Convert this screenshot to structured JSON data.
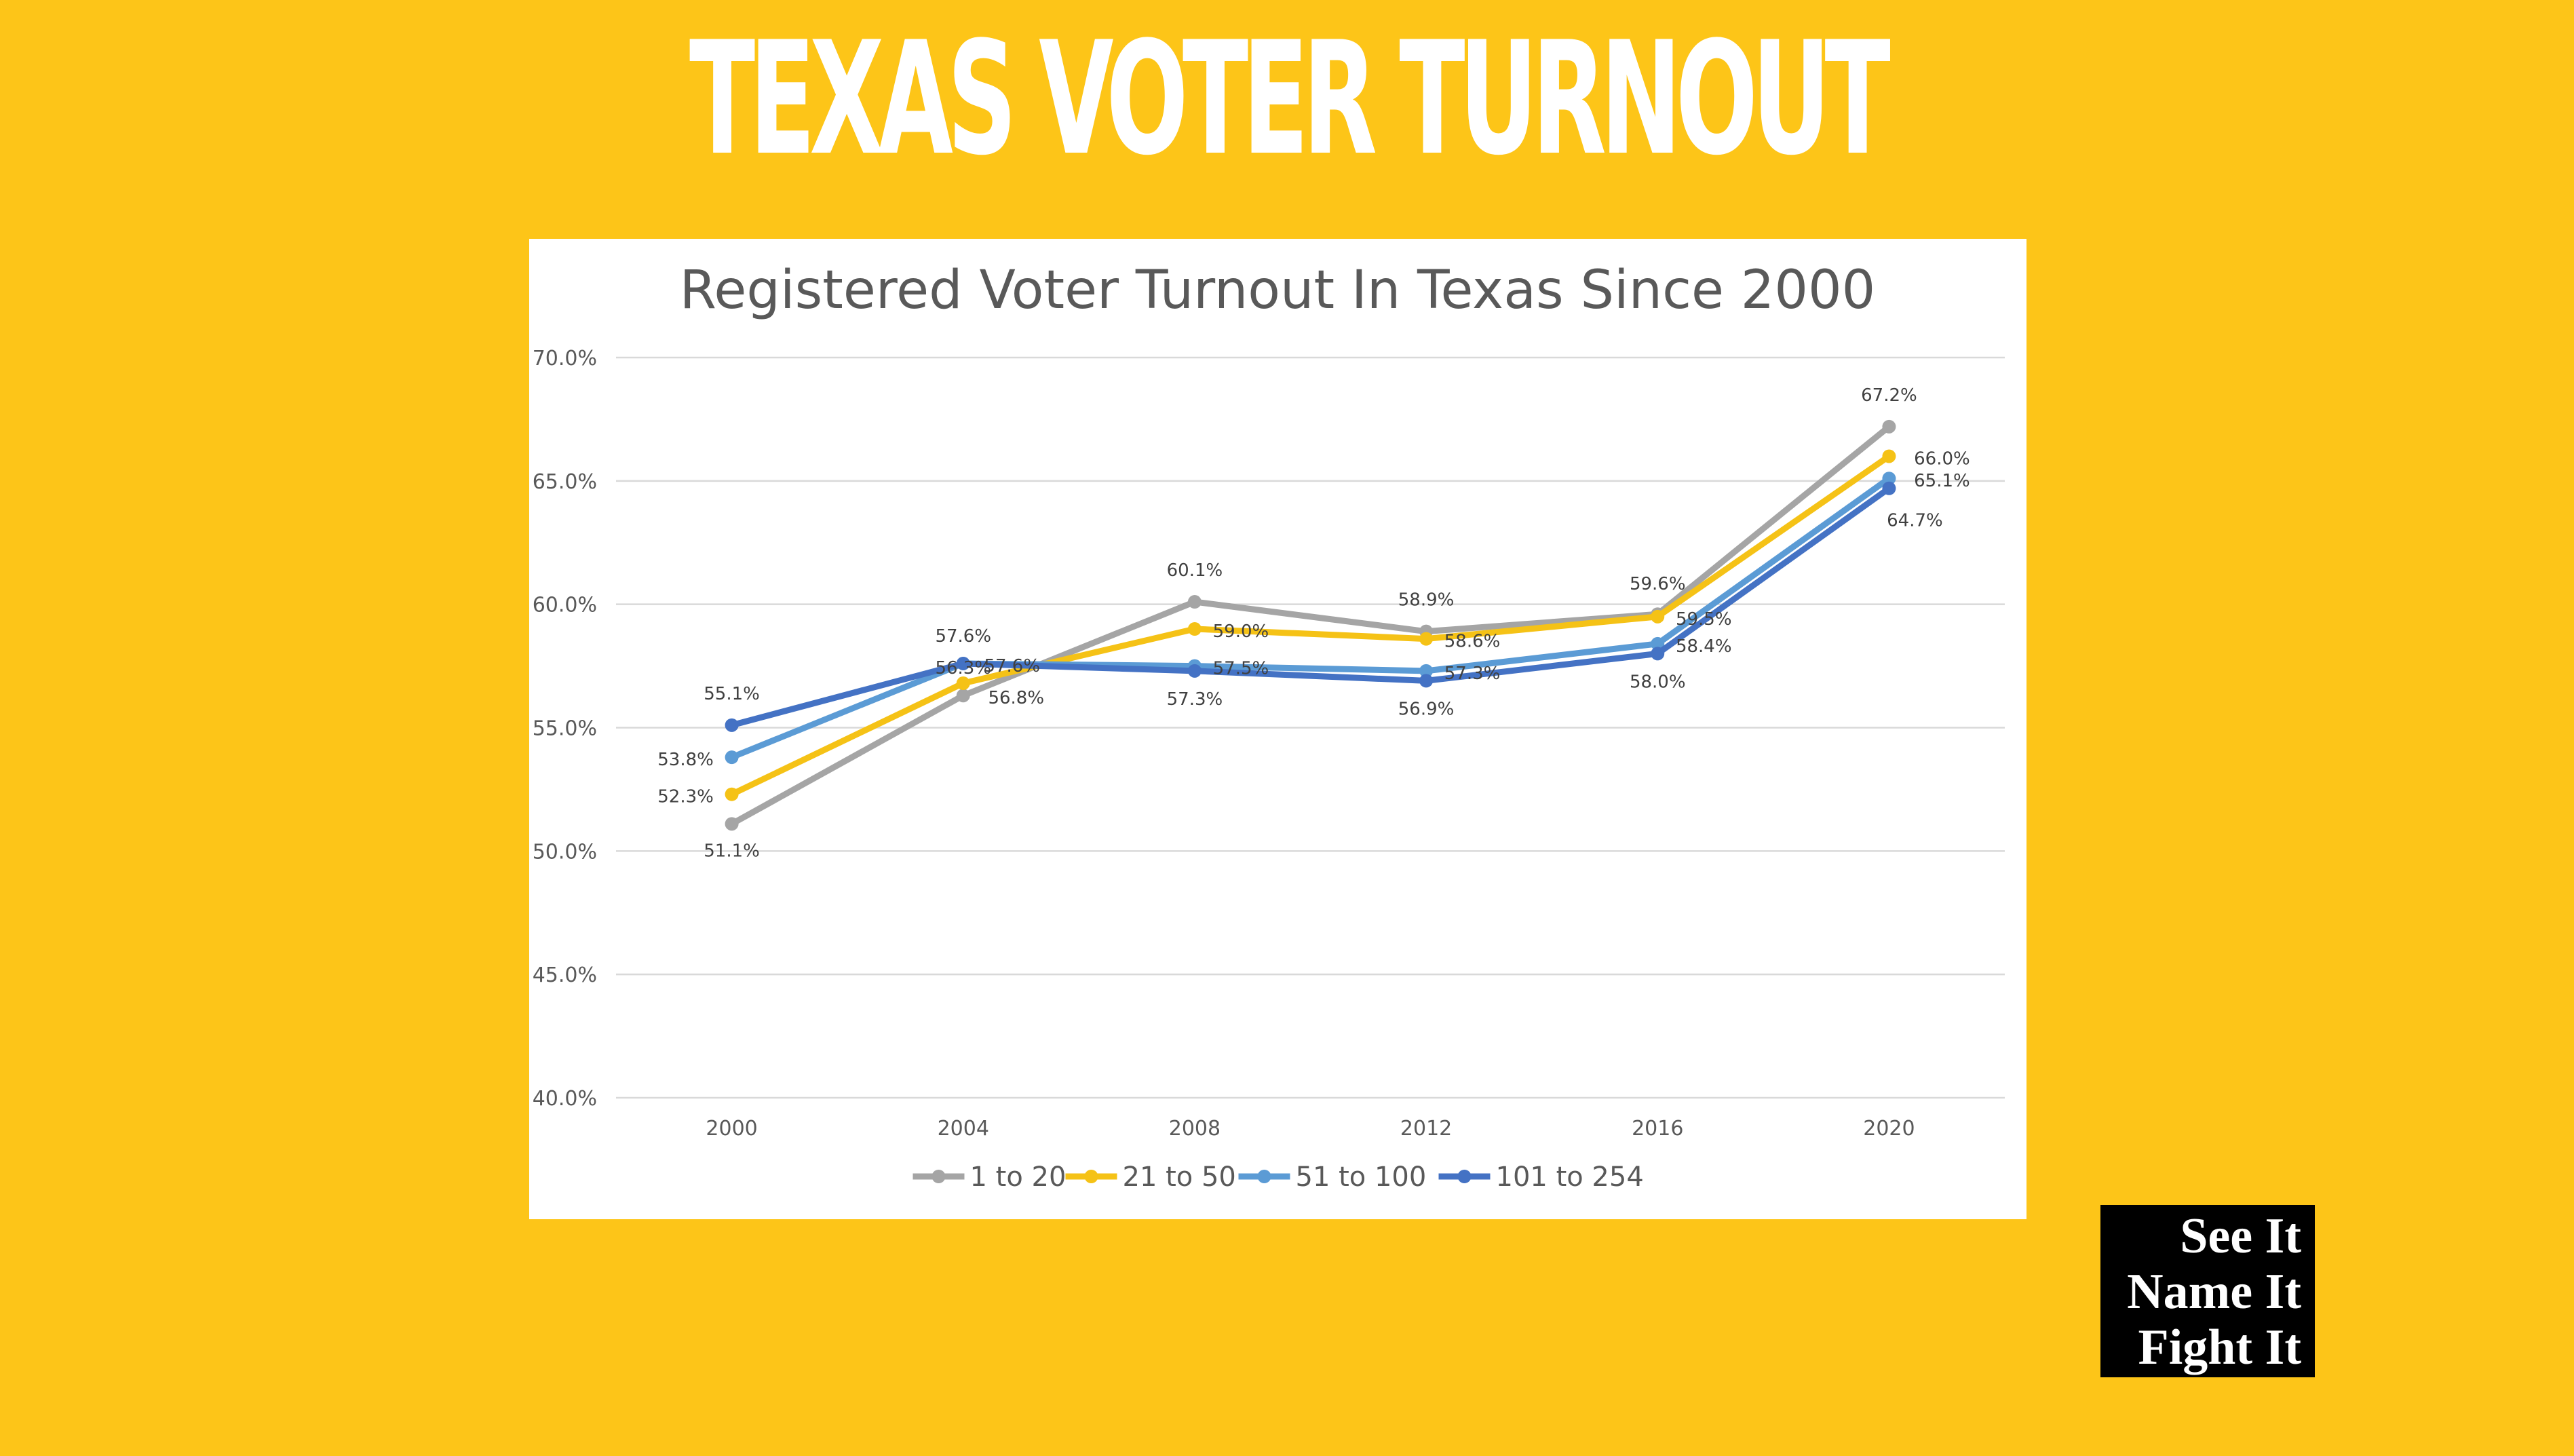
{
  "header": {
    "title": "TEXAS VOTER TURNOUT"
  },
  "logo": {
    "lines": [
      "See It",
      "Name It",
      "Fight It"
    ]
  },
  "colors": {
    "background": "#FDC518",
    "panel": "#FFFFFF",
    "logo_bg": "#000000"
  },
  "chart_data": {
    "type": "line",
    "title": "Registered Voter Turnout In Texas Since 2000",
    "xlabel": "",
    "ylabel": "",
    "categories": [
      "2000",
      "2004",
      "2008",
      "2012",
      "2016",
      "2020"
    ],
    "ylim": [
      40,
      70
    ],
    "yticks": [
      "40.0%",
      "45.0%",
      "50.0%",
      "55.0%",
      "60.0%",
      "65.0%",
      "70.0%"
    ],
    "grid": true,
    "legend_position": "bottom",
    "series": [
      {
        "name": "1 to 20",
        "color": "#A5A5A5",
        "values": [
          51.1,
          56.3,
          60.1,
          58.9,
          59.6,
          67.2
        ],
        "labels": [
          "51.1%",
          "56.3%",
          "60.1%",
          "58.9%",
          "59.6%",
          "67.2%"
        ]
      },
      {
        "name": "21 to 50",
        "color": "#F5C216",
        "values": [
          52.3,
          56.8,
          59.0,
          58.6,
          59.5,
          66.0
        ],
        "labels": [
          "52.3%",
          "56.8%",
          "59.0%",
          "58.6%",
          "59.5%",
          "66.0%"
        ]
      },
      {
        "name": "51 to 100",
        "color": "#5B9BD5",
        "values": [
          53.8,
          57.6,
          57.5,
          57.3,
          58.4,
          65.1
        ],
        "labels": [
          "53.8%",
          "57.6%",
          "57.5%",
          "57.3%",
          "58.4%",
          "65.1%"
        ]
      },
      {
        "name": "101 to 254",
        "color": "#4472C4",
        "values": [
          55.1,
          57.6,
          57.3,
          56.9,
          58.0,
          64.7
        ],
        "labels": [
          "55.1%",
          "57.6%",
          "57.3%",
          "56.9%",
          "58.0%",
          "64.7%"
        ]
      }
    ]
  }
}
